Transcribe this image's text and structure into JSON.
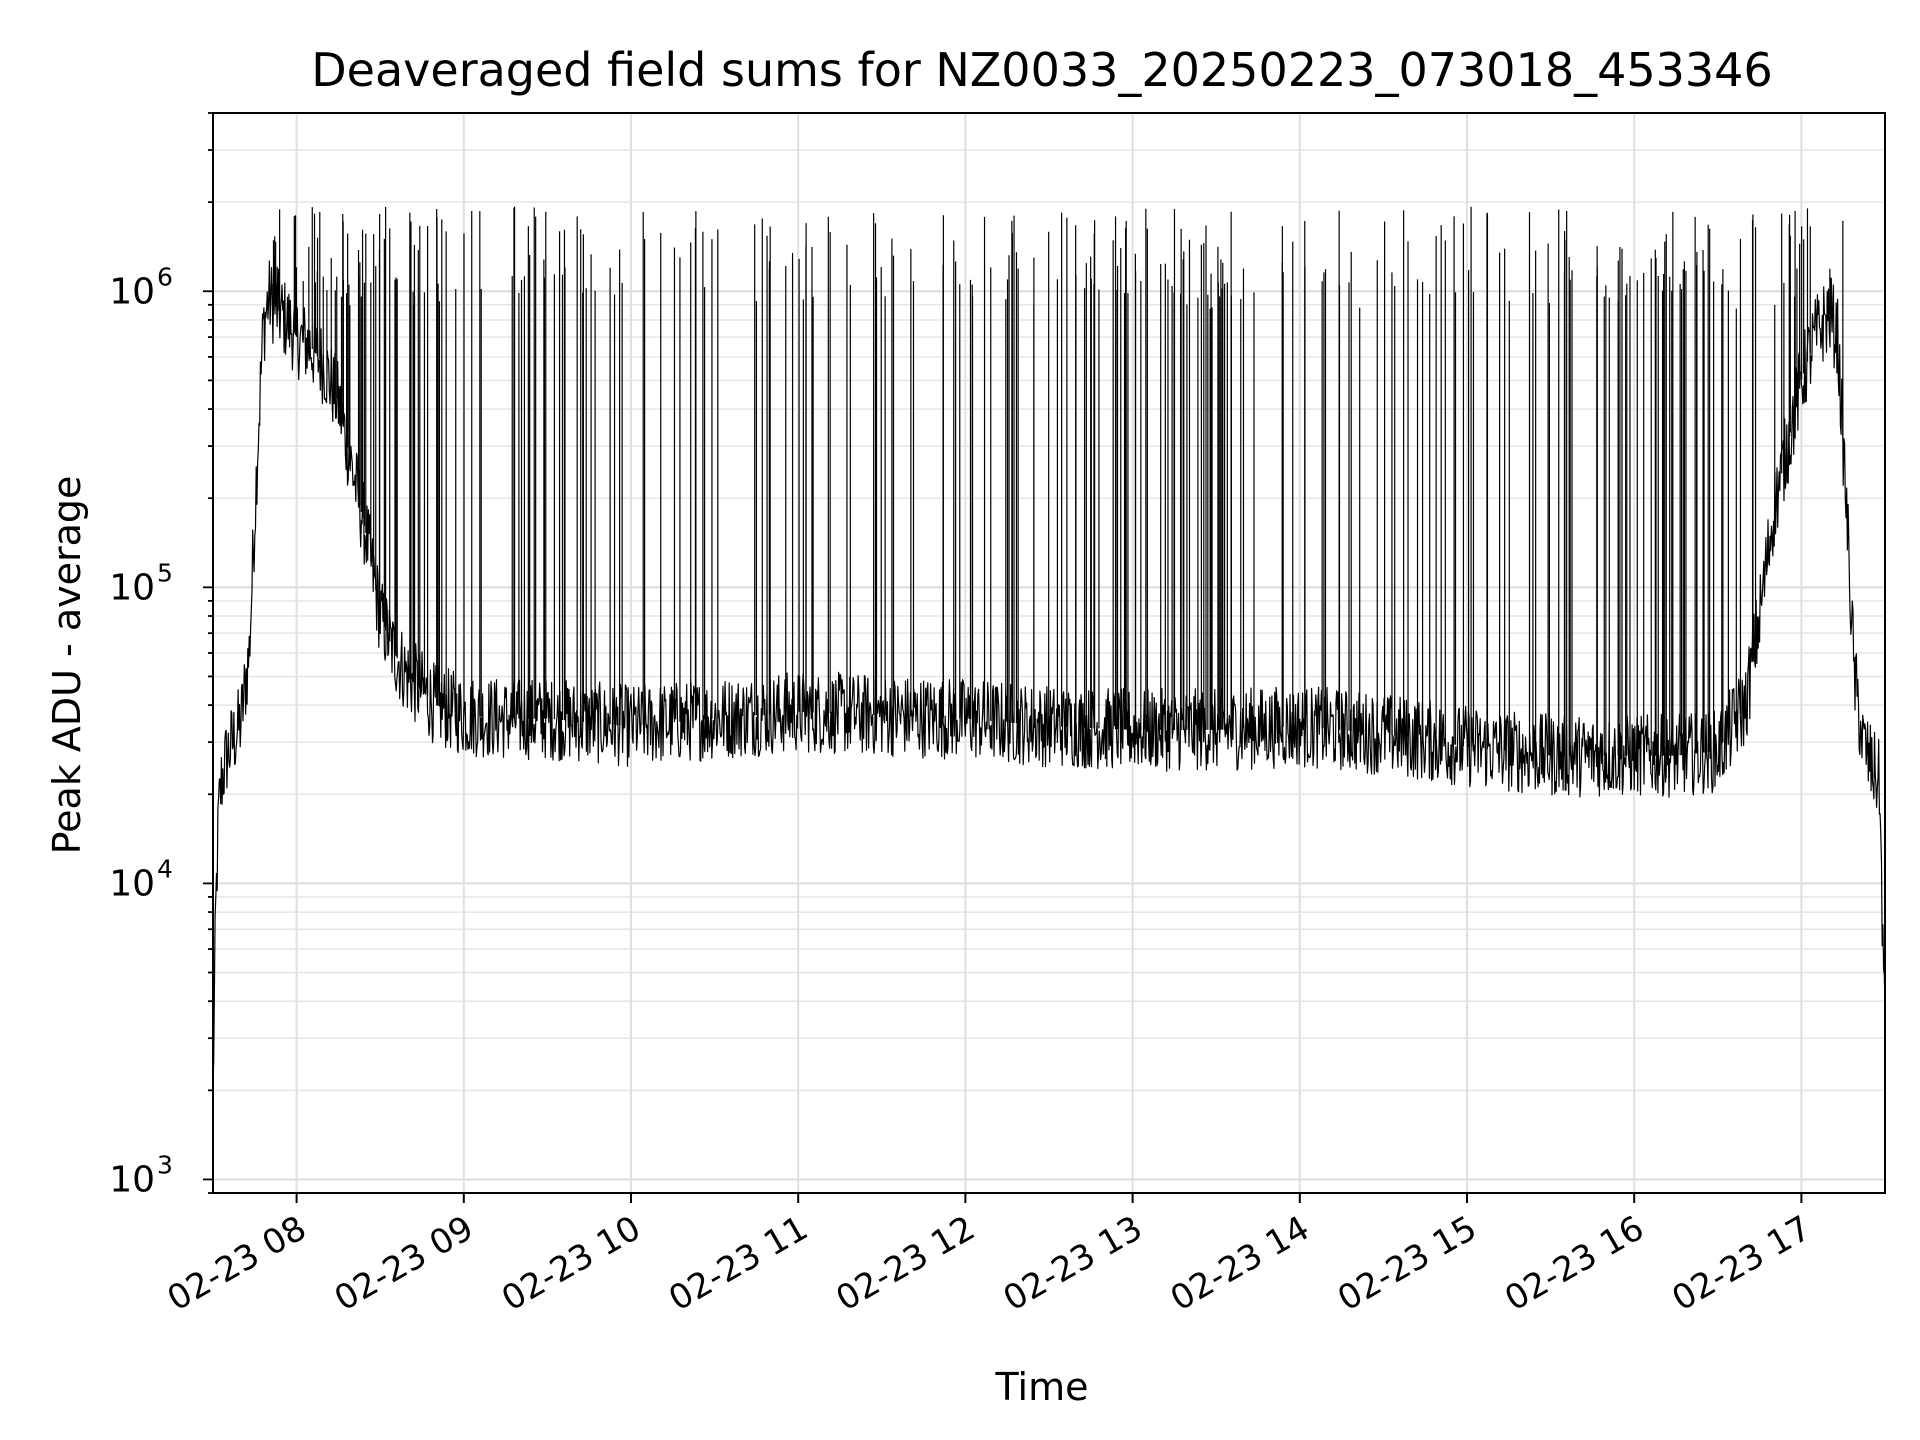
{
  "chart_data": {
    "type": "line",
    "title": "Deaveraged field sums for NZ0033_20250223_073018_453346",
    "xlabel": "Time",
    "ylabel": "Peak ADU - average",
    "y_scale": "log",
    "ylim": [
      900,
      4000000
    ],
    "x_range": [
      "2025-02-23 07:30",
      "2025-02-23 17:30"
    ],
    "x_ticks": [
      {
        "x": "2025-02-23 08:00",
        "label": "02-23 08"
      },
      {
        "x": "2025-02-23 09:00",
        "label": "02-23 09"
      },
      {
        "x": "2025-02-23 10:00",
        "label": "02-23 10"
      },
      {
        "x": "2025-02-23 11:00",
        "label": "02-23 11"
      },
      {
        "x": "2025-02-23 12:00",
        "label": "02-23 12"
      },
      {
        "x": "2025-02-23 13:00",
        "label": "02-23 13"
      },
      {
        "x": "2025-02-23 14:00",
        "label": "02-23 14"
      },
      {
        "x": "2025-02-23 15:00",
        "label": "02-23 15"
      },
      {
        "x": "2025-02-23 16:00",
        "label": "02-23 16"
      },
      {
        "x": "2025-02-23 17:00",
        "label": "02-23 17"
      }
    ],
    "y_ticks": [
      {
        "value": 1000,
        "base": "10",
        "exp": "3"
      },
      {
        "value": 10000,
        "base": "10",
        "exp": "4"
      },
      {
        "value": 100000,
        "base": "10",
        "exp": "5"
      },
      {
        "value": 1000000,
        "base": "10",
        "exp": "6"
      }
    ],
    "grid": true,
    "line_color": "#000000",
    "series": [
      {
        "x": [
          "2025-02-23 07:30",
          "2025-02-23 07:31",
          "2025-02-23 07:32",
          "2025-02-23 07:33",
          "2025-02-23 07:35",
          "2025-02-23 07:37",
          "2025-02-23 07:40",
          "2025-02-23 07:43",
          "2025-02-23 07:46",
          "2025-02-23 07:48",
          "2025-02-23 07:50",
          "2025-02-23 07:52",
          "2025-02-23 07:54",
          "2025-02-23 07:56",
          "2025-02-23 07:58",
          "2025-02-23 08:00",
          "2025-02-23 08:05",
          "2025-02-23 08:10",
          "2025-02-23 08:15",
          "2025-02-23 08:20",
          "2025-02-23 08:25",
          "2025-02-23 08:30",
          "2025-02-23 08:35",
          "2025-02-23 08:40",
          "2025-02-23 08:50",
          "2025-02-23 09:00",
          "2025-02-23 09:15",
          "2025-02-23 09:30",
          "2025-02-23 10:00",
          "2025-02-23 10:30",
          "2025-02-23 11:00",
          "2025-02-23 11:30",
          "2025-02-23 12:00",
          "2025-02-23 12:30",
          "2025-02-23 13:00",
          "2025-02-23 13:30",
          "2025-02-23 14:00",
          "2025-02-23 14:30",
          "2025-02-23 15:00",
          "2025-02-23 15:30",
          "2025-02-23 16:00",
          "2025-02-23 16:15",
          "2025-02-23 16:30",
          "2025-02-23 16:40",
          "2025-02-23 16:45",
          "2025-02-23 16:50",
          "2025-02-23 16:55",
          "2025-02-23 17:00",
          "2025-02-23 17:05",
          "2025-02-23 17:10",
          "2025-02-23 17:13",
          "2025-02-23 17:16",
          "2025-02-23 17:19",
          "2025-02-23 17:22",
          "2025-02-23 17:25",
          "2025-02-23 17:28",
          "2025-02-23 17:30"
        ],
        "y": [
          2000,
          8000,
          17000,
          22000,
          27000,
          30000,
          35000,
          60000,
          300000,
          750000,
          950000,
          900000,
          850000,
          800000,
          760000,
          700000,
          650000,
          560000,
          420000,
          250000,
          150000,
          80000,
          60000,
          50000,
          40000,
          37000,
          36000,
          36000,
          34000,
          36000,
          38000,
          37000,
          36000,
          34000,
          33000,
          33000,
          34000,
          32000,
          29000,
          27000,
          27000,
          27000,
          28000,
          40000,
          80000,
          180000,
          300000,
          500000,
          700000,
          850000,
          700000,
          200000,
          50000,
          30000,
          25000,
          22000,
          3000
        ]
      }
    ]
  }
}
